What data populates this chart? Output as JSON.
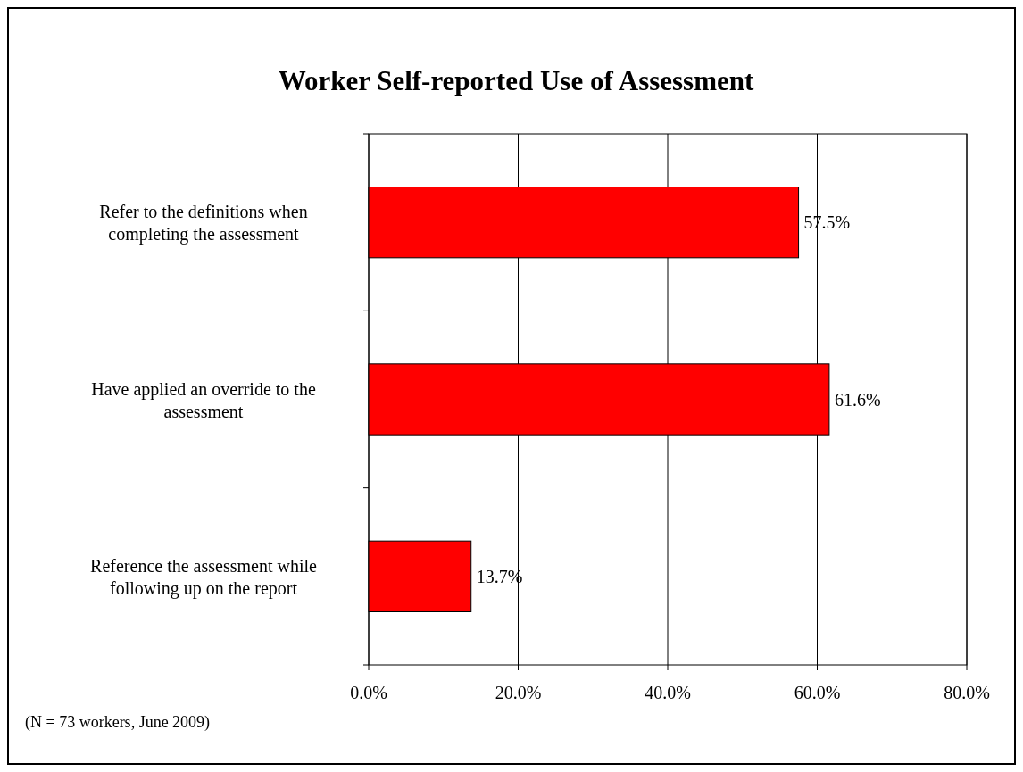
{
  "chart_data": {
    "type": "bar",
    "orientation": "horizontal",
    "title": "Worker Self-reported Use of Assessment",
    "categories": [
      "Refer to the definitions when completing the assessment",
      "Have applied an override to the assessment",
      "Reference the assessment while following up on the report"
    ],
    "values": [
      57.5,
      61.6,
      13.7
    ],
    "color": "#ff0000",
    "value_labels": [
      "57.5%",
      "61.6%",
      "13.7%"
    ],
    "xlim": [
      0,
      80
    ],
    "xticks": [
      {
        "value": 0,
        "label": "0.0%"
      },
      {
        "value": 20,
        "label": "20.0%"
      },
      {
        "value": 40,
        "label": "40.0%"
      },
      {
        "value": 60,
        "label": "60.0%"
      },
      {
        "value": 80,
        "label": "80.0%"
      }
    ],
    "grid": "x",
    "annotations": [
      "(N = 73 workers, June 2009)"
    ]
  }
}
